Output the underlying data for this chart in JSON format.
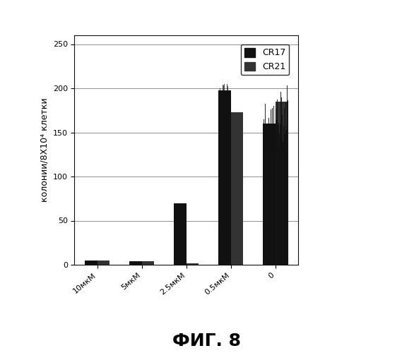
{
  "categories": [
    "10мкМ",
    "5мкМ",
    "2.5мкМ",
    "0.5мкМ",
    "0"
  ],
  "cr17_values": [
    5,
    4,
    70,
    198,
    160
  ],
  "cr21_values": [
    5,
    4,
    2,
    173,
    185
  ],
  "cr17_color": "#111111",
  "cr21_color": "#333333",
  "ylabel": "колонии/8X10⁴ клетки",
  "ylim": [
    0,
    260
  ],
  "yticks": [
    0,
    50,
    100,
    150,
    200,
    250
  ],
  "legend_labels": [
    "CR17",
    "CR21"
  ],
  "figure_title": "ФИГ. 8",
  "bar_width": 0.28,
  "background_color": "#ffffff",
  "title_fontsize": 18,
  "axis_fontsize": 9,
  "tick_fontsize": 8,
  "legend_fontsize": 9
}
